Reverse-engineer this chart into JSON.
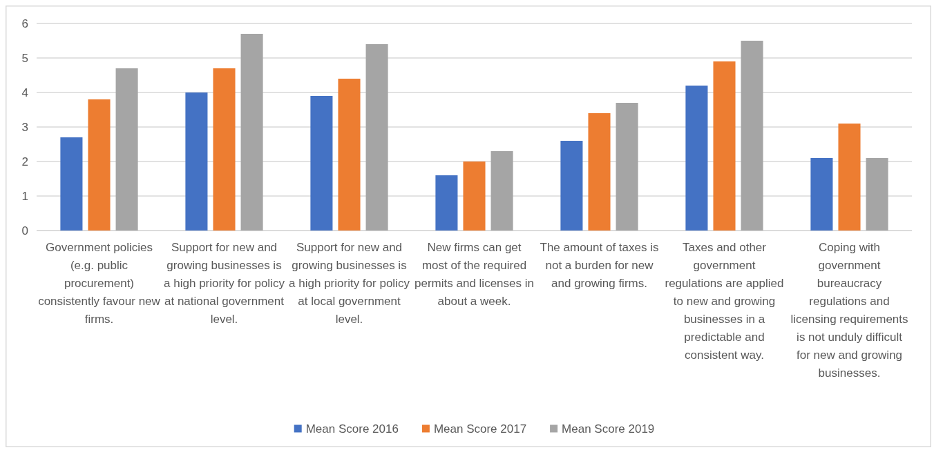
{
  "chart_data": {
    "type": "bar",
    "categories": [
      "Government policies (e.g. public procurement) consistently favour new firms.",
      "Support for new and growing businesses is a high priority for policy at national government level.",
      "Support for new and growing businesses is a high priority for policy at local government level.",
      "New firms can get most of the required permits and licenses in about a week.",
      "The amount of taxes is not a burden for new and growing firms.",
      "Taxes and other government regulations are applied to new and growing businesses in a predictable and consistent way.",
      "Coping with government bureaucracy regulations and licensing requirements is not unduly difficult for new and growing businesses."
    ],
    "series": [
      {
        "name": "Mean Score 2016",
        "color": "#4472c4",
        "values": [
          2.7,
          4.0,
          3.9,
          1.6,
          2.6,
          4.2,
          2.1
        ]
      },
      {
        "name": "Mean Score 2017",
        "color": "#ed7d31",
        "values": [
          3.8,
          4.7,
          4.4,
          2.0,
          3.4,
          4.9,
          3.1
        ]
      },
      {
        "name": "Mean Score 2019",
        "color": "#a5a5a5",
        "values": [
          4.7,
          5.7,
          5.4,
          2.3,
          3.7,
          5.5,
          2.1
        ]
      }
    ],
    "ylim": [
      0,
      6
    ],
    "yticks": [
      0,
      1,
      2,
      3,
      4,
      5,
      6
    ],
    "grid": "y",
    "legend": "bottom"
  }
}
